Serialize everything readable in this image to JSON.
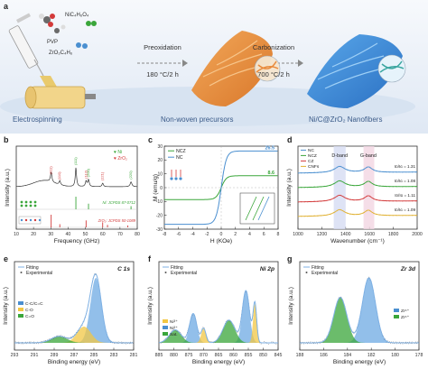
{
  "figure": {
    "panel_labels": [
      "a",
      "b",
      "c",
      "d",
      "e",
      "f",
      "g"
    ],
    "schematic": {
      "reagents": [
        "NiC₄H₆O₄",
        "PVP",
        "ZrO₂C₄H₆"
      ],
      "step1": {
        "name": "Preoxidation",
        "condition": "180 °C/2 h"
      },
      "step2": {
        "name": "Carbonization",
        "condition": "700 °C/2 h"
      },
      "stages": [
        "Electrospinning",
        "Non-woven precursors",
        "Ni/C@ZrO₂ Nanofibers"
      ]
    },
    "colors": {
      "blue": "#4a8fd0",
      "green": "#3aa63a",
      "red": "#d33a3a",
      "yellow": "#f2d58a",
      "orange": "#e08a3c",
      "stage_text": "#3a5a88"
    }
  },
  "chart_data": [
    {
      "panel": "b",
      "type": "line",
      "xlabel": "Frequency (GHz)",
      "ylabel": "Intensity (a.u.)",
      "xlim": [
        10,
        80
      ],
      "xticks": [
        "10",
        "20",
        "30",
        "40",
        "50",
        "60",
        "70",
        "80"
      ],
      "legend": [
        {
          "symbol": "♥",
          "label": "Ni",
          "color": "#3aa63a"
        },
        {
          "symbol": "♥",
          "label": "ZrO₂",
          "color": "#d33a3a"
        }
      ],
      "peaks": [
        {
          "label": "(011)",
          "x": 30.2,
          "color": "#d33a3a"
        },
        {
          "label": "(110)",
          "x": 35.2,
          "color": "#d33a3a"
        },
        {
          "label": "(111)",
          "x": 44.5,
          "color": "#3aa63a"
        },
        {
          "label": "(112)",
          "x": 50.4,
          "color": "#d33a3a"
        },
        {
          "label": "(121)",
          "x": 60.0,
          "color": "#d33a3a"
        },
        {
          "label": "(200)",
          "x": 51.8,
          "color": "#3aa63a"
        },
        {
          "label": "(220)",
          "x": 76.4,
          "color": "#3aa63a"
        }
      ],
      "references": [
        {
          "name": "Ni: JCPDS 87-0712",
          "color": "#3aa63a",
          "lines": [
            44.5,
            51.8,
            76.4
          ],
          "heights": [
            1.0,
            0.45,
            0.25
          ]
        },
        {
          "name": "ZrO₂: JCPDS 50-1089",
          "color": "#d33a3a",
          "lines": [
            30.2,
            35.2,
            50.4,
            60.0,
            62.8,
            74.5
          ],
          "heights": [
            1.0,
            0.25,
            0.55,
            0.4,
            0.2,
            0.15
          ]
        }
      ]
    },
    {
      "panel": "c",
      "type": "line",
      "xlabel": "H (KOe)",
      "ylabel": "M (emu/g)",
      "xlim": [
        -8,
        8
      ],
      "ylim": [
        -30,
        30
      ],
      "xticks": [
        "-8",
        "-6",
        "-4",
        "-2",
        "0",
        "2",
        "4",
        "6",
        "8"
      ],
      "yticks": [
        "-30",
        "-20",
        "-10",
        "0",
        "10",
        "20",
        "30"
      ],
      "series": [
        {
          "name": "NCZ",
          "color": "#3aa63a",
          "saturation": 8.6
        },
        {
          "name": "NC",
          "color": "#4a8fd0",
          "saturation": 26.5
        }
      ],
      "annotations": [
        "26.5",
        "8.6"
      ]
    },
    {
      "panel": "d",
      "type": "line",
      "xlabel": "Wavenumber (cm⁻¹)",
      "ylabel": "Intensity (a.u.)",
      "xlim": [
        1000,
        2000
      ],
      "xticks": [
        "1000",
        "1200",
        "1400",
        "1600",
        "1800",
        "2000"
      ],
      "bands": [
        {
          "label": "D-band",
          "x": 1350
        },
        {
          "label": "G-band",
          "x": 1590
        }
      ],
      "series": [
        {
          "name": "NC",
          "color": "#4a8fd0",
          "ratio": "Iᴅ/Iɢ = 1.31"
        },
        {
          "name": "NCZ",
          "color": "#3aa63a",
          "ratio": "Iᴅ/Iɢ = 1.08"
        },
        {
          "name": "CZ",
          "color": "#d33a3a",
          "ratio": "Iᴅ/Iɢ = 1.11"
        },
        {
          "name": "CNFs",
          "color": "#e0b030",
          "ratio": "Iᴅ/Iɢ = 1.09"
        }
      ]
    },
    {
      "panel": "e",
      "type": "line",
      "title": "C 1s",
      "xlabel": "Binding energy (eV)",
      "ylabel": "Intensity (a.u.)",
      "xlim": [
        293,
        281
      ],
      "xticks": [
        "293",
        "291",
        "289",
        "287",
        "285",
        "283",
        "281"
      ],
      "legend": [
        "Fitting",
        "Experimental"
      ],
      "components": [
        {
          "name": "C-C/C=C",
          "center": 284.8,
          "color": "#4a8fd0"
        },
        {
          "name": "C-O",
          "center": 286.0,
          "color": "#f2c744"
        },
        {
          "name": "C=O",
          "center": 288.5,
          "color": "#3aa63a"
        }
      ]
    },
    {
      "panel": "f",
      "type": "line",
      "title": "Ni 2p",
      "xlabel": "Binding energy (eV)",
      "ylabel": "Intensity (a.u.)",
      "xlim": [
        885,
        845
      ],
      "xticks": [
        "885",
        "880",
        "875",
        "870",
        "865",
        "860",
        "855",
        "850",
        "845"
      ],
      "legend": [
        "Fitting",
        "Experimental"
      ],
      "components": [
        {
          "name": "Ni³⁺",
          "color": "#f2c744"
        },
        {
          "name": "Ni²⁺",
          "color": "#4a8fd0"
        },
        {
          "name": "Sat.",
          "color": "#3aa63a"
        }
      ]
    },
    {
      "panel": "g",
      "type": "line",
      "title": "Zr 3d",
      "xlabel": "Binding energy (eV)",
      "ylabel": "Intensity (a.u.)",
      "xlim": [
        188,
        178
      ],
      "xticks": [
        "188",
        "186",
        "184",
        "182",
        "180",
        "178"
      ],
      "legend": [
        "Fitting",
        "Experimental"
      ],
      "components": [
        {
          "name": "Zr⁴⁺",
          "center": 182.2,
          "color": "#4a8fd0"
        },
        {
          "name": "Zr⁴⁺",
          "center": 184.6,
          "color": "#3aa63a"
        }
      ]
    }
  ]
}
